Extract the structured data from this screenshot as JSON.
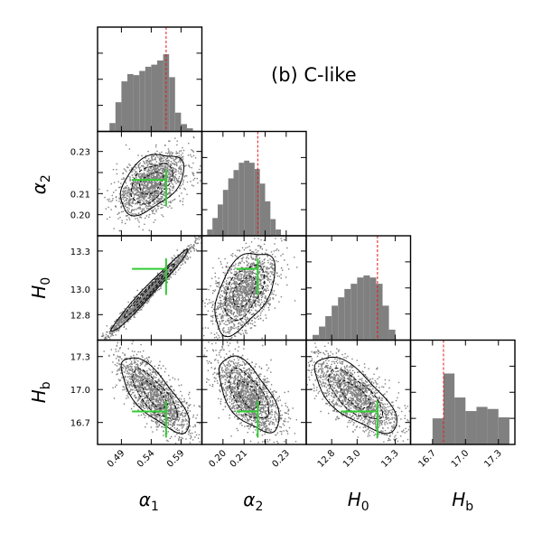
{
  "chart_data": {
    "type": "corner",
    "title": "(b) C-like",
    "parameters": [
      {
        "name": "alpha_1",
        "label": "α",
        "sub": "1",
        "range": [
          0.45,
          0.625
        ],
        "ticks": [
          0.49,
          0.54,
          0.59
        ],
        "tick_labels": [
          "0.49",
          "0.54",
          "0.59"
        ],
        "truth": 0.565
      },
      {
        "name": "alpha_2",
        "label": "α",
        "sub": "2",
        "range": [
          0.19,
          0.2395
        ],
        "ticks": [
          0.2,
          0.21,
          0.22,
          0.23
        ],
        "tick_labels": [
          "0.20",
          "0.21",
          "0.22",
          "0.23"
        ],
        "truth": 0.2165
      },
      {
        "name": "H_0",
        "label": "H",
        "sub": "0",
        "range": [
          12.6,
          13.42
        ],
        "ticks": [
          12.8,
          13.0,
          13.3
        ],
        "tick_labels": [
          "12.8",
          "13.0",
          "13.3"
        ],
        "truth": 13.16
      },
      {
        "name": "H_b",
        "label": "H",
        "sub": "b",
        "range": [
          16.5,
          17.45
        ],
        "ticks": [
          16.7,
          17.0,
          17.3
        ],
        "tick_labels": [
          "16.7",
          "17.0",
          "17.3"
        ],
        "truth": 16.8
      }
    ],
    "histograms": [
      {
        "param": "alpha_1",
        "bin_edges": [
          0.47,
          0.48,
          0.49,
          0.5,
          0.51,
          0.52,
          0.53,
          0.54,
          0.55,
          0.56,
          0.57,
          0.58,
          0.59,
          0.6,
          0.61
        ],
        "counts": [
          0.08,
          0.28,
          0.48,
          0.55,
          0.54,
          0.58,
          0.62,
          0.64,
          0.68,
          0.74,
          0.52,
          0.18,
          0.07,
          0.03
        ]
      },
      {
        "param": "alpha_2",
        "bin_edges": [
          0.1925,
          0.195,
          0.1975,
          0.2,
          0.2025,
          0.205,
          0.2075,
          0.21,
          0.2125,
          0.215,
          0.2175,
          0.22,
          0.2225,
          0.225,
          0.2275
        ],
        "counts": [
          0.06,
          0.17,
          0.3,
          0.44,
          0.55,
          0.63,
          0.7,
          0.72,
          0.7,
          0.64,
          0.5,
          0.33,
          0.16,
          0.06
        ]
      },
      {
        "param": "H_0",
        "bin_edges": [
          12.65,
          12.7,
          12.75,
          12.8,
          12.85,
          12.9,
          12.95,
          13.0,
          13.05,
          13.1,
          13.15,
          13.2,
          13.25,
          13.3
        ],
        "counts": [
          0.05,
          0.13,
          0.23,
          0.33,
          0.41,
          0.49,
          0.54,
          0.6,
          0.62,
          0.6,
          0.54,
          0.33,
          0.1
        ]
      },
      {
        "param": "H_b",
        "bin_edges": [
          16.7,
          16.8,
          16.9,
          17.0,
          17.1,
          17.2,
          17.3,
          17.4
        ],
        "counts": [
          0.25,
          0.68,
          0.45,
          0.32,
          0.36,
          0.34,
          0.26
        ]
      }
    ],
    "pairs": [
      {
        "x": "alpha_1",
        "y": "alpha_2",
        "center": [
          0.54,
          0.215
        ],
        "sigma": [
          0.028,
          0.0075
        ],
        "rho": 0.45
      },
      {
        "x": "alpha_1",
        "y": "H_0",
        "center": [
          0.535,
          12.98
        ],
        "sigma": [
          0.034,
          0.17
        ],
        "rho": 0.985
      },
      {
        "x": "alpha_2",
        "y": "H_0",
        "center": [
          0.21,
          12.98
        ],
        "sigma": [
          0.0075,
          0.17
        ],
        "rho": 0.5
      },
      {
        "x": "alpha_1",
        "y": "H_b",
        "center": [
          0.545,
          16.95
        ],
        "sigma": [
          0.03,
          0.18
        ],
        "rho": -0.75
      },
      {
        "x": "alpha_2",
        "y": "H_b",
        "center": [
          0.212,
          16.95
        ],
        "sigma": [
          0.0075,
          0.18
        ],
        "rho": -0.6
      },
      {
        "x": "H_0",
        "y": "H_b",
        "center": [
          12.98,
          16.95
        ],
        "sigma": [
          0.17,
          0.18
        ],
        "rho": -0.7
      }
    ],
    "colors": {
      "samples": "#7f7f7f",
      "histogram": "#808080",
      "contour": "#000000",
      "truth_line": "#e8141b",
      "truth_marker": "#33cc33"
    }
  }
}
